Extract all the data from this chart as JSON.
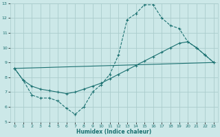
{
  "xlabel": "Humidex (Indice chaleur)",
  "xlim": [
    -0.5,
    23.5
  ],
  "ylim": [
    5,
    13
  ],
  "yticks": [
    5,
    6,
    7,
    8,
    9,
    10,
    11,
    12,
    13
  ],
  "xticks": [
    0,
    1,
    2,
    3,
    4,
    5,
    6,
    7,
    8,
    9,
    10,
    11,
    12,
    13,
    14,
    15,
    16,
    17,
    18,
    19,
    20,
    21,
    22,
    23
  ],
  "bg_color": "#cce8e8",
  "grid_color": "#aacccc",
  "line_color": "#1a7070",
  "line1_x": [
    0,
    1,
    2,
    3,
    4,
    5,
    6,
    7,
    8,
    9,
    10,
    11,
    12,
    13,
    14,
    15,
    16,
    17,
    18,
    19,
    20,
    21,
    22,
    23
  ],
  "line1_y": [
    8.6,
    7.8,
    6.8,
    6.6,
    6.6,
    6.4,
    5.9,
    5.5,
    6.0,
    7.0,
    7.5,
    8.2,
    9.5,
    11.9,
    12.3,
    12.9,
    12.9,
    12.0,
    11.5,
    11.3,
    10.4,
    10.0,
    9.5,
    9.0
  ],
  "line2_x": [
    0,
    1,
    2,
    3,
    4,
    5,
    6,
    7,
    8,
    9,
    10,
    11,
    12,
    13,
    14,
    15,
    16,
    17,
    18,
    19,
    20,
    21,
    22,
    23
  ],
  "line2_y": [
    8.6,
    7.8,
    7.4,
    7.2,
    7.1,
    7.0,
    6.9,
    7.0,
    7.2,
    7.4,
    7.6,
    7.9,
    8.2,
    8.5,
    8.8,
    9.1,
    9.4,
    9.7,
    10.0,
    10.3,
    10.4,
    10.0,
    9.5,
    9.0
  ],
  "line3_x": [
    0,
    23
  ],
  "line3_y": [
    8.6,
    9.0
  ]
}
